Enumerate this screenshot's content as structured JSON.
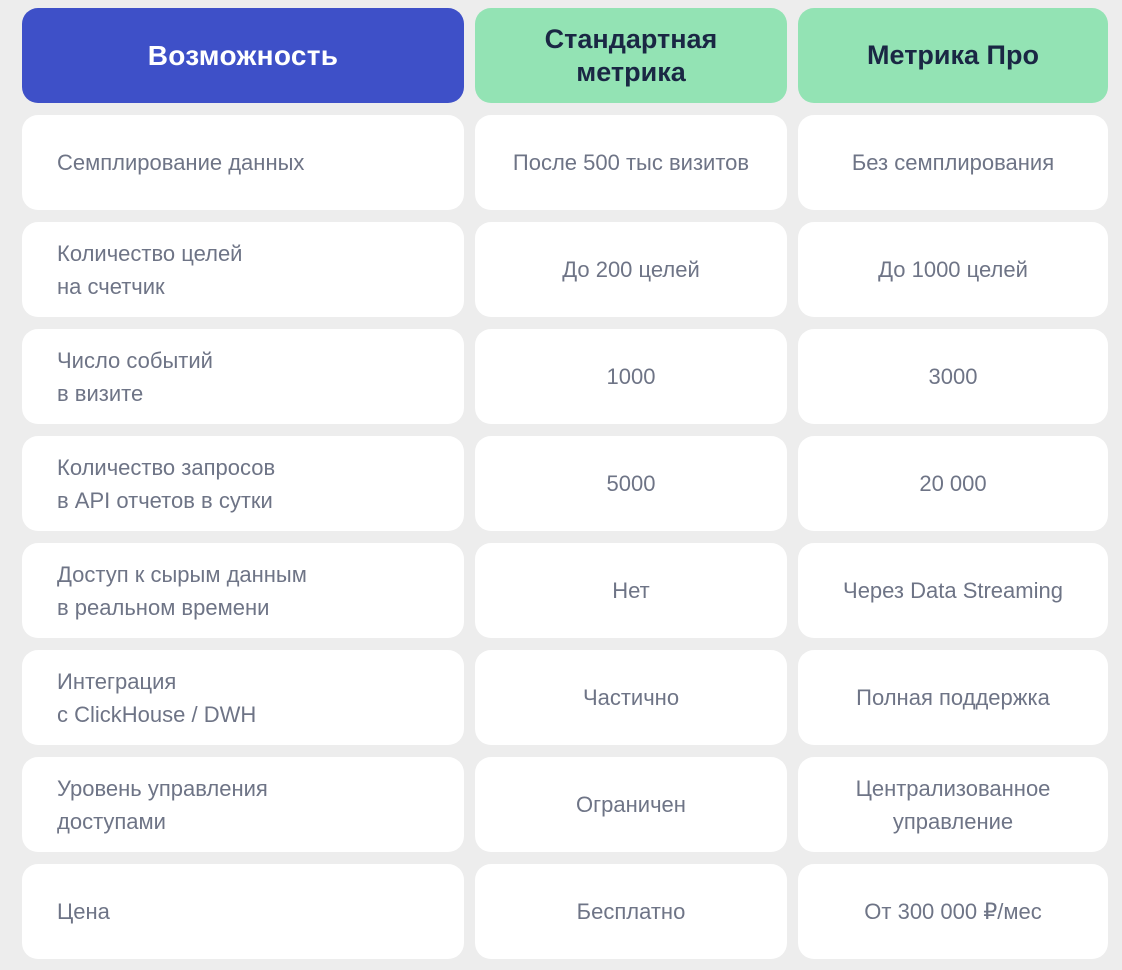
{
  "colors": {
    "page_background": "#ededed",
    "card_background": "#ffffff",
    "feature_header_background": "#3e50c8",
    "feature_header_text": "#ffffff",
    "plan_header_background": "#93e3b4",
    "plan_header_text": "#1a2744",
    "body_text": "#6e7486"
  },
  "chart_data": {
    "type": "table",
    "columns": [
      {
        "label": "Возможность"
      },
      {
        "label": "Стандартная\nметрика"
      },
      {
        "label": "Метрика Про"
      }
    ],
    "rows": [
      {
        "feature": "Семплирование данных",
        "standard": "После 500 тыс визитов",
        "pro": "Без семплирования"
      },
      {
        "feature": "Количество целей\nна счетчик",
        "standard": "До 200 целей",
        "pro": "До 1000 целей"
      },
      {
        "feature": "Число событий\nв визите",
        "standard": "1000",
        "pro": "3000"
      },
      {
        "feature": "Количество запросов\nв API отчетов в сутки",
        "standard": "5000",
        "pro": "20 000"
      },
      {
        "feature": "Доступ к сырым данным\nв реальном времени",
        "standard": "Нет",
        "pro": "Через Data Streaming"
      },
      {
        "feature": "Интеграция\nс ClickHouse / DWH",
        "standard": "Частично",
        "pro": "Полная поддержка"
      },
      {
        "feature": "Уровень управления\nдоступами",
        "standard": "Ограничен",
        "pro": "Централизованное\nуправление"
      },
      {
        "feature": "Цена",
        "standard": "Бесплатно",
        "pro": "От 300 000 ₽/мес"
      }
    ]
  }
}
